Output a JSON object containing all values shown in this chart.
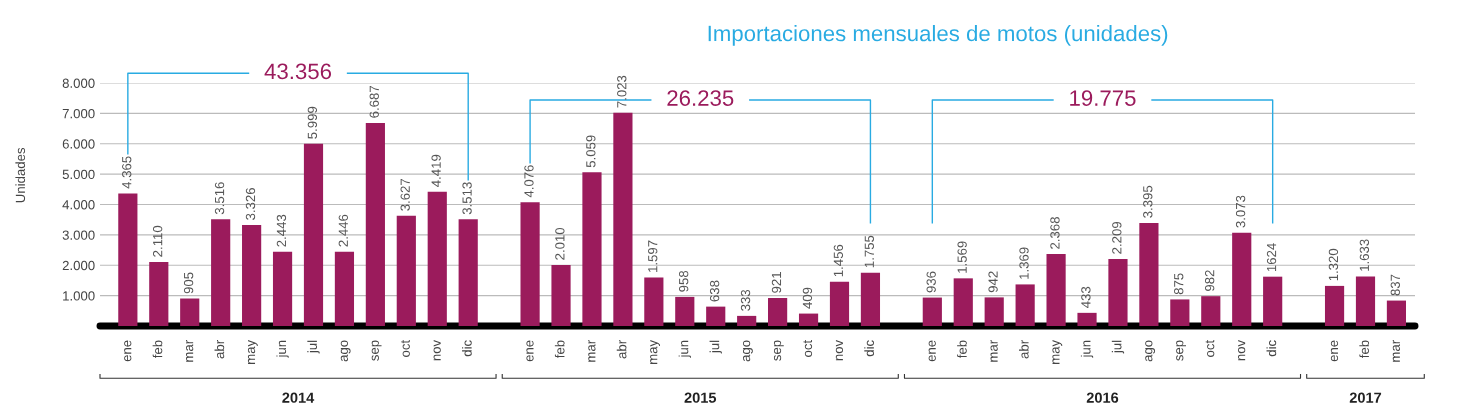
{
  "chart_data": {
    "type": "bar",
    "title": "Importaciones mensuales de motos (unidades)",
    "ylabel": "Unidades",
    "categories": [
      "ene",
      "feb",
      "mar",
      "abr",
      "may",
      "jun",
      "jul",
      "ago",
      "sep",
      "oct",
      "nov",
      "dic",
      null,
      "ene",
      "feb",
      "mar",
      "abr",
      "may",
      "jun",
      "jul",
      "ago",
      "sep",
      "oct",
      "nov",
      "dic",
      null,
      "ene",
      "feb",
      "mar",
      "abr",
      "may",
      "jun",
      "jul",
      "ago",
      "sep",
      "oct",
      "nov",
      "dic",
      null,
      "ene",
      "feb",
      "mar"
    ],
    "values": [
      4365,
      2110,
      905,
      3516,
      3326,
      2443,
      5999,
      2446,
      6687,
      3627,
      4419,
      3513,
      null,
      4076,
      2010,
      5059,
      7023,
      1597,
      958,
      638,
      333,
      921,
      409,
      1456,
      1755,
      null,
      936,
      1569,
      942,
      1369,
      2368,
      433,
      2209,
      3395,
      875,
      982,
      3073,
      1624,
      null,
      1320,
      1633,
      837
    ],
    "value_labels": [
      "4.365",
      "2.110",
      "905",
      "3.516",
      "3.326",
      "2.443",
      "5.999",
      "2.446",
      "6.687",
      "3.627",
      "4.419",
      "3.513",
      null,
      "4.076",
      "2.010",
      "5.059",
      "7.023",
      "1.597",
      "958",
      "638",
      "333",
      "921",
      "409",
      "1.456",
      "1.755",
      null,
      "936",
      "1.569",
      "942",
      "1.369",
      "2.368",
      "433",
      "2.209",
      "3.395",
      "875",
      "982",
      "3.073",
      "1624",
      null,
      "1.320",
      "1.633",
      "837"
    ],
    "color": "#9b1b5c",
    "ylim": [
      0,
      8000
    ],
    "yticks": [
      {
        "value": 1000,
        "label": "1.000"
      },
      {
        "value": 2000,
        "label": "2.000"
      },
      {
        "value": 3000,
        "label": "3.000"
      },
      {
        "value": 4000,
        "label": "4.000"
      },
      {
        "value": 5000,
        "label": "5.000"
      },
      {
        "value": 6000,
        "label": "6.000"
      },
      {
        "value": 7000,
        "label": "7.000"
      },
      {
        "value": 8000,
        "label": "8.000"
      }
    ],
    "grid": "y",
    "annotations": [
      "43.356",
      "26.235",
      "19.775",
      "2014",
      "2015",
      "2016",
      "2017"
    ]
  }
}
